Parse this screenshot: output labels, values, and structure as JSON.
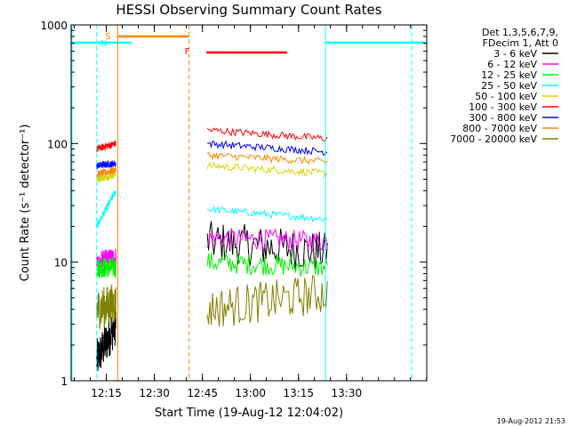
{
  "chart_data": {
    "type": "line",
    "title": "HESSI Observing Summary Count Rates",
    "xlabel": "Start Time (19-Aug-12 12:04:02)",
    "ylabel": "Count Rate (s⁻¹ detector⁻¹)",
    "y_scale": "log",
    "ylim": [
      1,
      1000
    ],
    "xlim_minutes": [
      12.067,
      13.917
    ],
    "x_ticks": [
      {
        "label": "12:15",
        "t": 12.25
      },
      {
        "label": "12:30",
        "t": 12.5
      },
      {
        "label": "12:45",
        "t": 12.75
      },
      {
        "label": "13:00",
        "t": 13.0
      },
      {
        "label": "13:15",
        "t": 13.25
      },
      {
        "label": "13:30",
        "t": 13.5
      }
    ],
    "y_ticks": [
      {
        "label": "1",
        "v": 1
      },
      {
        "label": "10",
        "v": 10
      },
      {
        "label": "100",
        "v": 100
      },
      {
        "label": "1000",
        "v": 1000
      }
    ],
    "legend_header": [
      "Det 1,3,5,6,7,9,",
      "FDecim 1, Att 0"
    ],
    "series": [
      {
        "name": "3 - 6 keV",
        "color": "#000000",
        "seg1": [
          1.5,
          3
        ],
        "seg2": [
          15,
          12
        ]
      },
      {
        "name": "6 - 12 keV",
        "color": "#ff00ff",
        "seg1": [
          10,
          11
        ],
        "seg2": [
          16,
          15
        ]
      },
      {
        "name": "12 - 25 keV",
        "color": "#00ee00",
        "seg1": [
          9,
          9
        ],
        "seg2": [
          10,
          9
        ]
      },
      {
        "name": "25 - 50 keV",
        "color": "#00ffff",
        "seg1": [
          20,
          40
        ],
        "seg2": [
          28,
          23
        ]
      },
      {
        "name": "50 - 100 keV",
        "color": "#d4d400",
        "seg1": [
          50,
          55
        ],
        "seg2": [
          65,
          56
        ]
      },
      {
        "name": "100 - 300 keV",
        "color": "#ff0000",
        "seg1": [
          90,
          100
        ],
        "seg2": [
          130,
          110
        ]
      },
      {
        "name": "300 - 800 keV",
        "color": "#0000ff",
        "seg1": [
          65,
          68
        ],
        "seg2": [
          100,
          85
        ]
      },
      {
        "name": "800 - 7000 keV",
        "color": "#ff8800",
        "seg1": [
          55,
          60
        ],
        "seg2": [
          80,
          70
        ]
      },
      {
        "name": "7000 - 20000 keV",
        "color": "#808000",
        "seg1": [
          4,
          4.5
        ],
        "seg2": [
          4,
          5.5
        ]
      }
    ],
    "segments_time": {
      "seg1": [
        12.2,
        12.3
      ],
      "seg2": [
        12.775,
        13.4
      ]
    },
    "annotations": [
      {
        "label": "N",
        "color": "#00ffff"
      },
      {
        "label": "S",
        "color": "#ff8800"
      },
      {
        "label": "F",
        "color": "#ff0000"
      }
    ],
    "timestamp": "19-Aug-2012 21:53"
  }
}
